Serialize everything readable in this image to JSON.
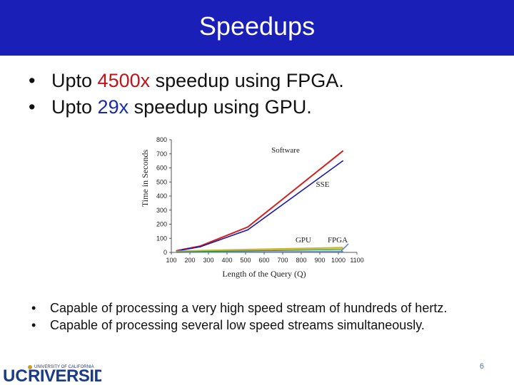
{
  "slide": {
    "title": "Speedups",
    "bullets_top": [
      {
        "pre": "Upto ",
        "highlight": "4500x",
        "post": " speedup using FPGA."
      },
      {
        "pre": "Upto ",
        "highlight": "29x",
        "post": " speedup using GPU."
      }
    ],
    "bullets_bottom": [
      "Capable of processing a very high speed stream of hundreds of hertz.",
      "Capable of processing several low speed streams simultaneously."
    ],
    "page_number": "6",
    "logo": {
      "word": "UCRIVERSIDE",
      "tagline": "UNIVERSITY OF CALIFORNIA"
    }
  },
  "colors": {
    "title_bar": "#1a1fb8",
    "software": "#d42020",
    "sse": "#1a1ab0",
    "gpu": "#c8b93a",
    "fpga": "#5a7ec8",
    "fpga_alt": "#2a8a3a",
    "highlight_red": "#c0141a",
    "highlight_blue": "#1a2bb0"
  },
  "chart_data": {
    "type": "line",
    "xlabel": "Length of the Query (Q)",
    "ylabel": "Time in Seconds",
    "xlim": [
      100,
      1100
    ],
    "ylim": [
      0,
      800
    ],
    "x_ticks": [
      "100",
      "200",
      "300",
      "400",
      "500",
      "600",
      "700",
      "800",
      "900",
      "1000",
      "1100"
    ],
    "y_ticks": [
      "0",
      "100",
      "200",
      "300",
      "400",
      "500",
      "600",
      "700",
      "800"
    ],
    "series": [
      {
        "name": "Software",
        "x": [
          128,
          256,
          512,
          1024
        ],
        "values": [
          12,
          45,
          180,
          720
        ]
      },
      {
        "name": "SSE",
        "x": [
          128,
          256,
          512,
          1024
        ],
        "values": [
          10,
          40,
          160,
          650
        ]
      },
      {
        "name": "GPU",
        "x": [
          128,
          256,
          512,
          1024
        ],
        "values": [
          5,
          10,
          18,
          32
        ]
      },
      {
        "name": "FPGA",
        "x": [
          128,
          256,
          512,
          1024
        ],
        "values": [
          1,
          2,
          3,
          5
        ]
      }
    ]
  }
}
